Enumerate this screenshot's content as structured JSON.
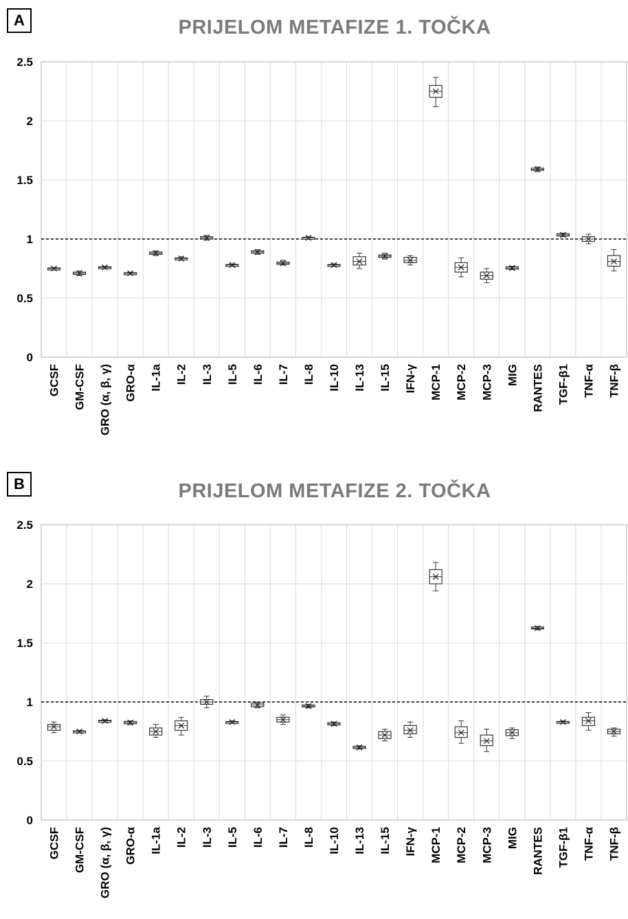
{
  "chart_data": [
    {
      "type": "box",
      "panel_label": "A",
      "title": "PRIJELOM METAFIZE 1. TOČKA",
      "xlabel": "",
      "ylabel": "",
      "ylim": [
        0,
        2.5
      ],
      "yticks": [
        "0",
        "0.5",
        "1",
        "1.5",
        "2",
        "2.5"
      ],
      "grid": true,
      "reference_line": 1,
      "categories": [
        "GCSF",
        "GM-CSF",
        "GRO (α, β, γ)",
        "GRO-α",
        "IL-1a",
        "IL-2",
        "IL-3",
        "IL-5",
        "IL-6",
        "IL-7",
        "IL-8",
        "IL-10",
        "IL-13",
        "IL-15",
        "IFN-γ",
        "MCP-1",
        "MCP-2",
        "MCP-3",
        "MIG",
        "RANTES",
        "TGF-β1",
        "TNF-α",
        "TNF-β"
      ],
      "boxes": [
        {
          "min": 0.74,
          "q1": 0.745,
          "median": 0.75,
          "mean": 0.75,
          "q3": 0.755,
          "max": 0.76
        },
        {
          "min": 0.69,
          "q1": 0.7,
          "median": 0.71,
          "mean": 0.71,
          "q3": 0.72,
          "max": 0.73
        },
        {
          "min": 0.75,
          "q1": 0.755,
          "median": 0.76,
          "mean": 0.76,
          "q3": 0.765,
          "max": 0.77
        },
        {
          "min": 0.7,
          "q1": 0.705,
          "median": 0.71,
          "mean": 0.71,
          "q3": 0.715,
          "max": 0.72
        },
        {
          "min": 0.86,
          "q1": 0.87,
          "median": 0.88,
          "mean": 0.88,
          "q3": 0.89,
          "max": 0.9
        },
        {
          "min": 0.82,
          "q1": 0.83,
          "median": 0.835,
          "mean": 0.835,
          "q3": 0.84,
          "max": 0.85
        },
        {
          "min": 0.99,
          "q1": 1.0,
          "median": 1.01,
          "mean": 1.01,
          "q3": 1.02,
          "max": 1.03
        },
        {
          "min": 0.77,
          "q1": 0.775,
          "median": 0.78,
          "mean": 0.78,
          "q3": 0.785,
          "max": 0.79
        },
        {
          "min": 0.87,
          "q1": 0.88,
          "median": 0.89,
          "mean": 0.89,
          "q3": 0.9,
          "max": 0.91
        },
        {
          "min": 0.78,
          "q1": 0.785,
          "median": 0.795,
          "mean": 0.795,
          "q3": 0.805,
          "max": 0.82
        },
        {
          "min": 1.0,
          "q1": 1.005,
          "median": 1.01,
          "mean": 1.01,
          "q3": 1.015,
          "max": 1.02
        },
        {
          "min": 0.77,
          "q1": 0.775,
          "median": 0.78,
          "mean": 0.78,
          "q3": 0.785,
          "max": 0.79
        },
        {
          "min": 0.75,
          "q1": 0.78,
          "median": 0.81,
          "mean": 0.81,
          "q3": 0.85,
          "max": 0.88
        },
        {
          "min": 0.83,
          "q1": 0.845,
          "median": 0.855,
          "mean": 0.855,
          "q3": 0.865,
          "max": 0.88
        },
        {
          "min": 0.78,
          "q1": 0.8,
          "median": 0.82,
          "mean": 0.82,
          "q3": 0.845,
          "max": 0.86
        },
        {
          "min": 2.12,
          "q1": 2.2,
          "median": 2.25,
          "mean": 2.25,
          "q3": 2.3,
          "max": 2.37
        },
        {
          "min": 0.68,
          "q1": 0.72,
          "median": 0.76,
          "mean": 0.76,
          "q3": 0.8,
          "max": 0.84
        },
        {
          "min": 0.63,
          "q1": 0.66,
          "median": 0.69,
          "mean": 0.69,
          "q3": 0.72,
          "max": 0.75
        },
        {
          "min": 0.74,
          "q1": 0.745,
          "median": 0.755,
          "mean": 0.755,
          "q3": 0.765,
          "max": 0.77
        },
        {
          "min": 1.57,
          "q1": 1.58,
          "median": 1.59,
          "mean": 1.59,
          "q3": 1.6,
          "max": 1.61
        },
        {
          "min": 1.02,
          "q1": 1.025,
          "median": 1.035,
          "mean": 1.035,
          "q3": 1.045,
          "max": 1.05
        },
        {
          "min": 0.96,
          "q1": 0.98,
          "median": 1.0,
          "mean": 1.0,
          "q3": 1.02,
          "max": 1.04
        },
        {
          "min": 0.73,
          "q1": 0.77,
          "median": 0.81,
          "mean": 0.81,
          "q3": 0.86,
          "max": 0.91
        }
      ]
    },
    {
      "type": "box",
      "panel_label": "B",
      "title": "PRIJELOM METAFIZE 2. TOČKA",
      "xlabel": "",
      "ylabel": "",
      "ylim": [
        0,
        2.5
      ],
      "yticks": [
        "0",
        "0.5",
        "1",
        "1.5",
        "2",
        "2.5"
      ],
      "grid": true,
      "reference_line": 1,
      "categories": [
        "GCSF",
        "GM-CSF",
        "GRO (α, β, γ)",
        "GRO-α",
        "IL-1a",
        "IL-2",
        "IL-3",
        "IL-5",
        "IL-6",
        "IL-7",
        "IL-8",
        "IL-10",
        "IL-13",
        "IL-15",
        "IFN-γ",
        "MCP-1",
        "MCP-2",
        "MCP-3",
        "MIG",
        "RANTES",
        "TGF-β1",
        "TNF-α",
        "TNF-β"
      ],
      "boxes": [
        {
          "min": 0.74,
          "q1": 0.76,
          "median": 0.79,
          "mean": 0.79,
          "q3": 0.81,
          "max": 0.83
        },
        {
          "min": 0.74,
          "q1": 0.745,
          "median": 0.75,
          "mean": 0.75,
          "q3": 0.755,
          "max": 0.76
        },
        {
          "min": 0.83,
          "q1": 0.835,
          "median": 0.84,
          "mean": 0.84,
          "q3": 0.845,
          "max": 0.85
        },
        {
          "min": 0.81,
          "q1": 0.815,
          "median": 0.825,
          "mean": 0.825,
          "q3": 0.835,
          "max": 0.84
        },
        {
          "min": 0.7,
          "q1": 0.72,
          "median": 0.75,
          "mean": 0.75,
          "q3": 0.78,
          "max": 0.81
        },
        {
          "min": 0.72,
          "q1": 0.76,
          "median": 0.8,
          "mean": 0.8,
          "q3": 0.84,
          "max": 0.87
        },
        {
          "min": 0.95,
          "q1": 0.98,
          "median": 1.0,
          "mean": 1.0,
          "q3": 1.02,
          "max": 1.05
        },
        {
          "min": 0.82,
          "q1": 0.825,
          "median": 0.83,
          "mean": 0.83,
          "q3": 0.835,
          "max": 0.84
        },
        {
          "min": 0.95,
          "q1": 0.96,
          "median": 0.975,
          "mean": 0.975,
          "q3": 0.99,
          "max": 1.0
        },
        {
          "min": 0.81,
          "q1": 0.83,
          "median": 0.85,
          "mean": 0.85,
          "q3": 0.87,
          "max": 0.89
        },
        {
          "min": 0.95,
          "q1": 0.96,
          "median": 0.965,
          "mean": 0.965,
          "q3": 0.975,
          "max": 0.98
        },
        {
          "min": 0.8,
          "q1": 0.805,
          "median": 0.815,
          "mean": 0.815,
          "q3": 0.825,
          "max": 0.83
        },
        {
          "min": 0.6,
          "q1": 0.605,
          "median": 0.615,
          "mean": 0.615,
          "q3": 0.625,
          "max": 0.63
        },
        {
          "min": 0.67,
          "q1": 0.69,
          "median": 0.72,
          "mean": 0.72,
          "q3": 0.75,
          "max": 0.77
        },
        {
          "min": 0.7,
          "q1": 0.73,
          "median": 0.76,
          "mean": 0.76,
          "q3": 0.8,
          "max": 0.83
        },
        {
          "min": 1.94,
          "q1": 2.0,
          "median": 2.06,
          "mean": 2.06,
          "q3": 2.12,
          "max": 2.18
        },
        {
          "min": 0.65,
          "q1": 0.7,
          "median": 0.74,
          "mean": 0.74,
          "q3": 0.79,
          "max": 0.84
        },
        {
          "min": 0.58,
          "q1": 0.63,
          "median": 0.67,
          "mean": 0.67,
          "q3": 0.72,
          "max": 0.77
        },
        {
          "min": 0.69,
          "q1": 0.715,
          "median": 0.74,
          "mean": 0.74,
          "q3": 0.765,
          "max": 0.78
        },
        {
          "min": 1.61,
          "q1": 1.62,
          "median": 1.625,
          "mean": 1.625,
          "q3": 1.635,
          "max": 1.64
        },
        {
          "min": 0.82,
          "q1": 0.825,
          "median": 0.83,
          "mean": 0.83,
          "q3": 0.835,
          "max": 0.84
        },
        {
          "min": 0.76,
          "q1": 0.8,
          "median": 0.84,
          "mean": 0.84,
          "q3": 0.87,
          "max": 0.91
        },
        {
          "min": 0.71,
          "q1": 0.73,
          "median": 0.75,
          "mean": 0.75,
          "q3": 0.77,
          "max": 0.78
        }
      ]
    }
  ]
}
